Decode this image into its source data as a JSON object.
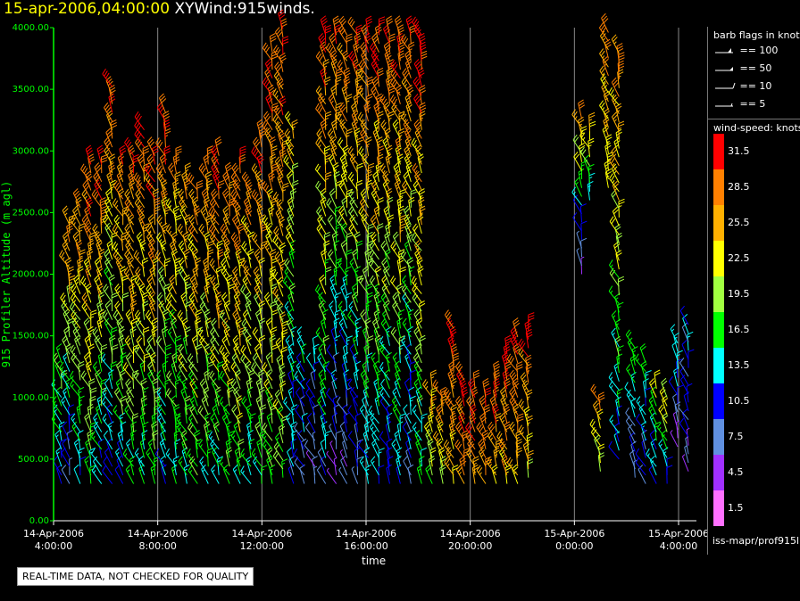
{
  "header": {
    "timestamp": "15-apr-2006,04:00:00",
    "title": "XYWind:915winds."
  },
  "legend": {
    "barb_title": "barb flags in knots",
    "barb_items": [
      {
        "label": "== 100"
      },
      {
        "label": "== 50"
      },
      {
        "label": "== 10"
      },
      {
        "label": "== 5"
      }
    ],
    "speed_title": "wind-speed: knots",
    "speed_scale": [
      {
        "label": "31.5",
        "color": "#ff0000"
      },
      {
        "label": "28.5",
        "color": "#ff8000"
      },
      {
        "label": "25.5",
        "color": "#ffb000"
      },
      {
        "label": "22.5",
        "color": "#ffff00"
      },
      {
        "label": "19.5",
        "color": "#a0ff40"
      },
      {
        "label": "16.5",
        "color": "#00ff00"
      },
      {
        "label": "13.5",
        "color": "#00ffff"
      },
      {
        "label": "10.5",
        "color": "#0000ff"
      },
      {
        "label": "7.5",
        "color": "#6090e0"
      },
      {
        "label": "4.5",
        "color": "#a030ff"
      },
      {
        "label": "1.5",
        "color": "#ff70ff"
      }
    ],
    "source": "iss-mapr/prof915l"
  },
  "footer": {
    "note": "REAL-TIME DATA, NOT CHECKED FOR QUALITY"
  },
  "chart_data": {
    "type": "wind-barb profile",
    "xlabel": "time",
    "ylabel": "915 Profiler Altitude (m agl)",
    "ylim": [
      0,
      4000
    ],
    "yticks": [
      "0.00",
      "500.00",
      "1000.00",
      "1500.00",
      "2000.00",
      "2500.00",
      "3000.00",
      "3500.00",
      "4000.00"
    ],
    "xticks": [
      {
        "date": "14-Apr-2006",
        "time": "4:00:00"
      },
      {
        "date": "14-Apr-2006",
        "time": "8:00:00"
      },
      {
        "date": "14-Apr-2006",
        "time": "12:00:00"
      },
      {
        "date": "14-Apr-2006",
        "time": "16:00:00"
      },
      {
        "date": "14-Apr-2006",
        "time": "20:00:00"
      },
      {
        "date": "15-Apr-2006",
        "time": "0:00:00"
      },
      {
        "date": "15-Apr-2006",
        "time": "4:00:00"
      }
    ],
    "x_range_hours": [
      4,
      28.1
    ],
    "grid": "vertical",
    "columns": [
      {
        "t": 4.3,
        "bottom": 300,
        "top": 1300,
        "speed_low": 12,
        "speed_high": 18
      },
      {
        "t": 4.6,
        "bottom": 300,
        "top": 2400,
        "speed_low": 8,
        "speed_high": 28
      },
      {
        "t": 5.0,
        "bottom": 300,
        "top": 2600,
        "speed_low": 12,
        "speed_high": 30
      },
      {
        "t": 5.4,
        "bottom": 300,
        "top": 2900,
        "speed_low": 15,
        "speed_high": 31
      },
      {
        "t": 5.8,
        "bottom": 300,
        "top": 2900,
        "speed_low": 12,
        "speed_high": 31
      },
      {
        "t": 6.2,
        "bottom": 300,
        "top": 3550,
        "speed_low": 10,
        "speed_high": 31
      },
      {
        "t": 6.6,
        "bottom": 300,
        "top": 2900,
        "speed_low": 12,
        "speed_high": 30
      },
      {
        "t": 7.0,
        "bottom": 300,
        "top": 3000,
        "speed_low": 15,
        "speed_high": 31
      },
      {
        "t": 7.4,
        "bottom": 300,
        "top": 3200,
        "speed_low": 14,
        "speed_high": 31
      },
      {
        "t": 7.8,
        "bottom": 300,
        "top": 3000,
        "speed_low": 16,
        "speed_high": 30
      },
      {
        "t": 8.2,
        "bottom": 300,
        "top": 3350,
        "speed_low": 12,
        "speed_high": 31
      },
      {
        "t": 8.6,
        "bottom": 300,
        "top": 2900,
        "speed_low": 14,
        "speed_high": 27
      },
      {
        "t": 9.0,
        "bottom": 300,
        "top": 2800,
        "speed_low": 15,
        "speed_high": 26
      },
      {
        "t": 9.4,
        "bottom": 300,
        "top": 2700,
        "speed_low": 16,
        "speed_high": 28
      },
      {
        "t": 9.8,
        "bottom": 300,
        "top": 2900,
        "speed_low": 14,
        "speed_high": 29
      },
      {
        "t": 10.2,
        "bottom": 300,
        "top": 3000,
        "speed_low": 15,
        "speed_high": 31
      },
      {
        "t": 10.6,
        "bottom": 300,
        "top": 2800,
        "speed_low": 16,
        "speed_high": 29
      },
      {
        "t": 11.0,
        "bottom": 300,
        "top": 2900,
        "speed_low": 17,
        "speed_high": 30
      },
      {
        "t": 11.4,
        "bottom": 300,
        "top": 2700,
        "speed_low": 14,
        "speed_high": 27
      },
      {
        "t": 11.8,
        "bottom": 300,
        "top": 3100,
        "speed_low": 15,
        "speed_high": 30
      },
      {
        "t": 12.2,
        "bottom": 300,
        "top": 3800,
        "speed_low": 16,
        "speed_high": 31
      },
      {
        "t": 12.6,
        "bottom": 350,
        "top": 4000,
        "speed_low": 18,
        "speed_high": 31
      },
      {
        "t": 13.0,
        "bottom": 300,
        "top": 3200,
        "speed_low": 10,
        "speed_high": 25
      },
      {
        "t": 13.4,
        "bottom": 300,
        "top": 1450,
        "speed_low": 8,
        "speed_high": 14
      },
      {
        "t": 13.8,
        "bottom": 300,
        "top": 1350,
        "speed_low": 6,
        "speed_high": 13
      },
      {
        "t": 14.2,
        "bottom": 300,
        "top": 4000,
        "speed_low": 10,
        "speed_high": 31
      },
      {
        "t": 14.6,
        "bottom": 300,
        "top": 4000,
        "speed_low": 5,
        "speed_high": 31
      },
      {
        "t": 15.0,
        "bottom": 300,
        "top": 4000,
        "speed_low": 6,
        "speed_high": 31
      },
      {
        "t": 15.4,
        "bottom": 300,
        "top": 4000,
        "speed_low": 7,
        "speed_high": 31
      },
      {
        "t": 15.8,
        "bottom": 300,
        "top": 4000,
        "speed_low": 12,
        "speed_high": 31
      },
      {
        "t": 16.2,
        "bottom": 300,
        "top": 4000,
        "speed_low": 12,
        "speed_high": 31
      },
      {
        "t": 16.6,
        "bottom": 300,
        "top": 4000,
        "speed_low": 10,
        "speed_high": 31
      },
      {
        "t": 17.0,
        "bottom": 300,
        "top": 4000,
        "speed_low": 12,
        "speed_high": 31
      },
      {
        "t": 17.4,
        "bottom": 300,
        "top": 4000,
        "speed_low": 8,
        "speed_high": 31
      },
      {
        "t": 17.8,
        "bottom": 300,
        "top": 4000,
        "speed_low": 14,
        "speed_high": 31
      },
      {
        "t": 18.2,
        "bottom": 300,
        "top": 1100,
        "speed_low": 18,
        "speed_high": 28
      },
      {
        "t": 18.6,
        "bottom": 300,
        "top": 1050,
        "speed_low": 20,
        "speed_high": 30
      },
      {
        "t": 19.0,
        "bottom": 300,
        "top": 1600,
        "speed_low": 24,
        "speed_high": 31
      },
      {
        "t": 19.4,
        "bottom": 300,
        "top": 1200,
        "speed_low": 26,
        "speed_high": 31
      },
      {
        "t": 19.8,
        "bottom": 300,
        "top": 1100,
        "speed_low": 27,
        "speed_high": 31
      },
      {
        "t": 20.2,
        "bottom": 300,
        "top": 1000,
        "speed_low": 27,
        "speed_high": 31
      },
      {
        "t": 20.6,
        "bottom": 300,
        "top": 1150,
        "speed_low": 26,
        "speed_high": 31
      },
      {
        "t": 21.0,
        "bottom": 300,
        "top": 1350,
        "speed_low": 25,
        "speed_high": 31
      },
      {
        "t": 21.4,
        "bottom": 300,
        "top": 1500,
        "speed_low": 24,
        "speed_high": 31
      },
      {
        "t": 21.8,
        "bottom": 350,
        "top": 1600,
        "speed_low": 22,
        "speed_high": 31
      },
      {
        "t": 23.8,
        "bottom": 2000,
        "top": 3300,
        "speed_low": 4,
        "speed_high": 28
      },
      {
        "t": 24.1,
        "bottom": 2600,
        "top": 3200,
        "speed_low": 14,
        "speed_high": 26
      },
      {
        "t": 24.5,
        "bottom": 400,
        "top": 1000,
        "speed_low": 20,
        "speed_high": 28
      },
      {
        "t": 24.8,
        "bottom": 2700,
        "top": 4000,
        "speed_low": 22,
        "speed_high": 28
      },
      {
        "t": 25.2,
        "bottom": 500,
        "top": 3800,
        "speed_low": 12,
        "speed_high": 28
      },
      {
        "t": 25.8,
        "bottom": 350,
        "top": 1400,
        "speed_low": 6,
        "speed_high": 18
      },
      {
        "t": 26.2,
        "bottom": 300,
        "top": 1300,
        "speed_low": 8,
        "speed_high": 17
      },
      {
        "t": 26.6,
        "bottom": 300,
        "top": 1100,
        "speed_low": 10,
        "speed_high": 20
      },
      {
        "t": 27.0,
        "bottom": 300,
        "top": 1000,
        "speed_low": 12,
        "speed_high": 22
      },
      {
        "t": 27.4,
        "bottom": 600,
        "top": 1500,
        "speed_low": 4,
        "speed_high": 16
      },
      {
        "t": 27.8,
        "bottom": 400,
        "top": 1650,
        "speed_low": 6,
        "speed_high": 12
      }
    ]
  }
}
